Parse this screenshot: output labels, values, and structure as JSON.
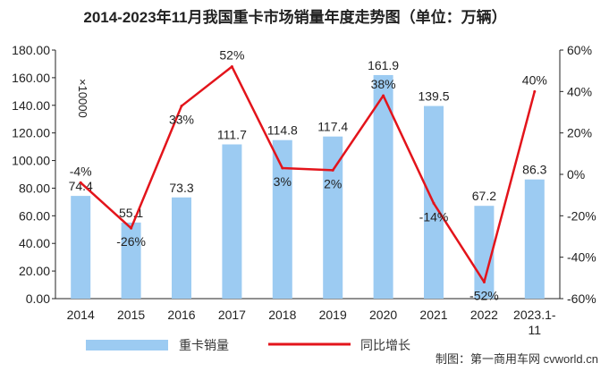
{
  "chart_data": {
    "type": "bar",
    "title": "2014-2023年11月我国重卡市场销量年度走势图（单位：万辆）",
    "unit_label": "×10000",
    "categories": [
      "2014",
      "2015",
      "2016",
      "2017",
      "2018",
      "2019",
      "2020",
      "2021",
      "2022",
      "2023.1-11"
    ],
    "series": [
      {
        "name": "重卡销量",
        "type": "bar",
        "axis": "left",
        "values": [
          74.4,
          55.1,
          73.3,
          111.7,
          114.8,
          117.4,
          161.9,
          139.5,
          67.2,
          86.3
        ],
        "labels": [
          "74.4",
          "55.1",
          "73.3",
          "111.7",
          "114.8",
          "117.4",
          "161.9",
          "139.5",
          "67.2",
          "86.3"
        ],
        "color": "#9ccbf2"
      },
      {
        "name": "同比增长",
        "type": "line",
        "axis": "right",
        "values": [
          -4,
          -26,
          33,
          52,
          3,
          2,
          38,
          -14,
          -52,
          40
        ],
        "labels": [
          "-4%",
          "-26%",
          "33%",
          "52%",
          "3%",
          "2%",
          "38%",
          "-14%",
          "-52%",
          "40%"
        ],
        "color": "#e3141b"
      }
    ],
    "y_left": {
      "range": [
        0,
        180
      ],
      "ticks": [
        0,
        20,
        40,
        60,
        80,
        100,
        120,
        140,
        160,
        180
      ],
      "tick_labels": [
        "0.00",
        "20.00",
        "40.00",
        "60.00",
        "80.00",
        "100.00",
        "120.00",
        "140.00",
        "160.00",
        "180.00"
      ]
    },
    "y_right": {
      "range": [
        -60,
        60
      ],
      "ticks": [
        -60,
        -40,
        -20,
        0,
        20,
        40,
        60
      ],
      "tick_labels": [
        "-60%",
        "-40%",
        "-20%",
        "0%",
        "20%",
        "40%",
        "60%"
      ]
    },
    "grid": false,
    "legend": "bottom",
    "credit": "制图：第一商用车网 cvworld.cn"
  }
}
